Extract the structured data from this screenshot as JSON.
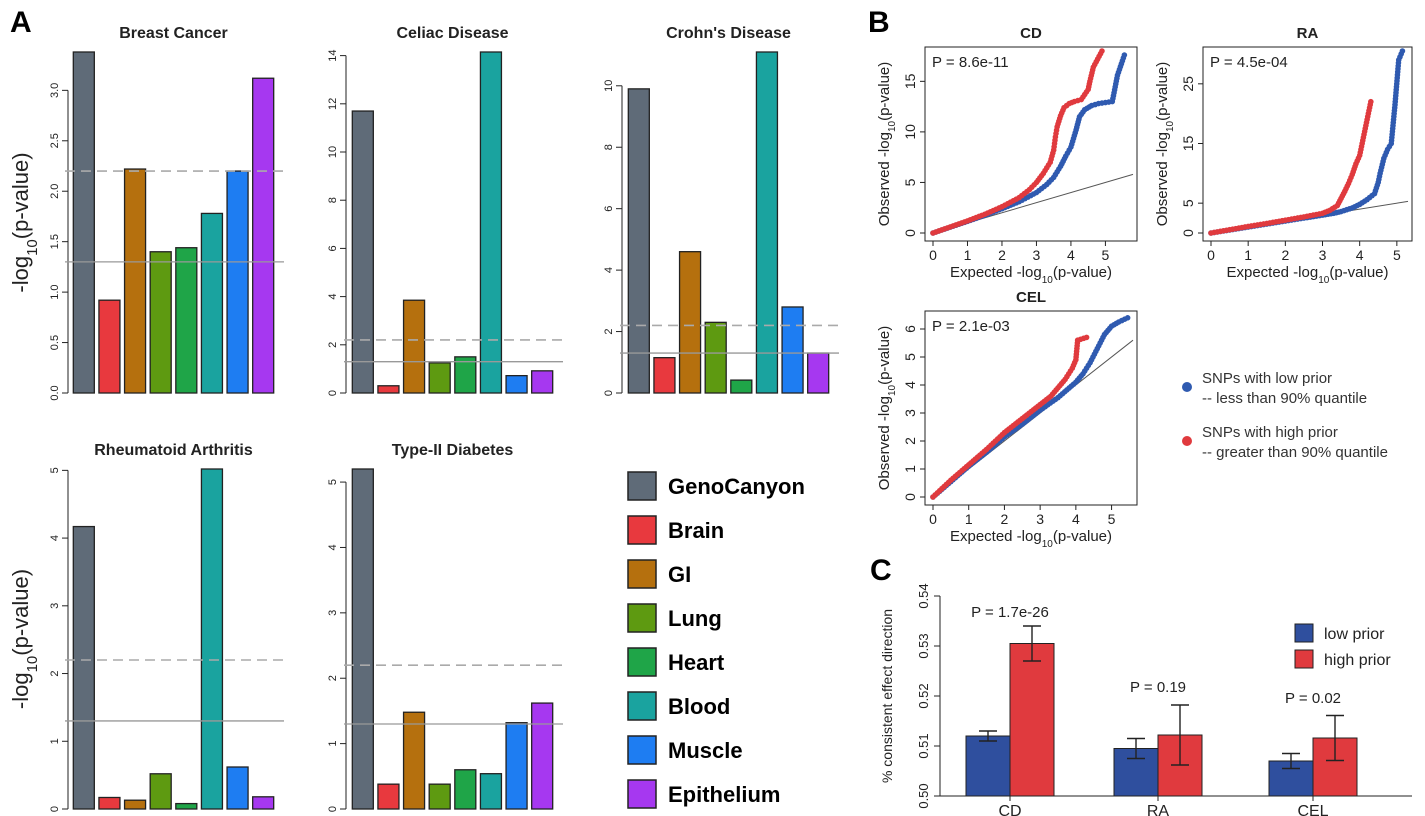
{
  "panel_labels": {
    "a": "A",
    "b": "B",
    "c": "C"
  },
  "categories_legend": {
    "items": [
      {
        "label": "GenoCanyon",
        "color": "#5f6b78"
      },
      {
        "label": "Brain",
        "color": "#e8393e"
      },
      {
        "label": "GI",
        "color": "#b5700e"
      },
      {
        "label": "Lung",
        "color": "#5e9a11"
      },
      {
        "label": "Heart",
        "color": "#1fa548"
      },
      {
        "label": "Blood",
        "color": "#1aa39f"
      },
      {
        "label": "Muscle",
        "color": "#1e7df2"
      },
      {
        "label": "Epithelium",
        "color": "#a638f0"
      }
    ]
  },
  "qq_legend": {
    "items": [
      {
        "line1": "SNPs with low prior",
        "line2": "-- less than 90% quantile",
        "color": "#2f5ab0"
      },
      {
        "line1": "SNPs with high prior",
        "line2": "-- greater than 90% quantile",
        "color": "#e03a3e"
      }
    ]
  },
  "chart_data": [
    {
      "type": "bar",
      "title": "Breast Cancer",
      "ylabel": "-log10(p-value)",
      "categories": [
        "GenoCanyon",
        "Brain",
        "GI",
        "Lung",
        "Heart",
        "Blood",
        "Muscle",
        "Epithelium"
      ],
      "values": [
        3.38,
        0.92,
        2.22,
        1.4,
        1.44,
        1.78,
        2.2,
        3.12
      ],
      "ylim": [
        0,
        3.38
      ],
      "yticks": [
        "0.0",
        "0.5",
        "1.0",
        "1.5",
        "2.0",
        "2.5",
        "3.0"
      ],
      "dashed_line": 2.2,
      "solid_line": 1.3
    },
    {
      "type": "bar",
      "title": "Celiac Disease",
      "ylabel": "",
      "categories": [
        "GenoCanyon",
        "Brain",
        "GI",
        "Lung",
        "Heart",
        "Blood",
        "Muscle",
        "Epithelium"
      ],
      "values": [
        11.7,
        0.3,
        3.85,
        1.25,
        1.5,
        14.15,
        0.72,
        0.92
      ],
      "ylim": [
        0,
        14.15
      ],
      "yticks": [
        "0",
        "2",
        "4",
        "6",
        "8",
        "10",
        "12",
        "14"
      ],
      "dashed_line": 2.2,
      "solid_line": 1.3
    },
    {
      "type": "bar",
      "title": "Crohn's Disease",
      "ylabel": "",
      "categories": [
        "GenoCanyon",
        "Brain",
        "GI",
        "Lung",
        "Heart",
        "Blood",
        "Muscle",
        "Epithelium"
      ],
      "values": [
        9.9,
        1.15,
        4.6,
        2.3,
        0.42,
        11.1,
        2.8,
        1.3
      ],
      "ylim": [
        0,
        11.1
      ],
      "yticks": [
        "0",
        "2",
        "4",
        "6",
        "8",
        "10"
      ],
      "dashed_line": 2.2,
      "solid_line": 1.3
    },
    {
      "type": "bar",
      "title": "Rheumatoid Arthritis",
      "ylabel": "-log10(p-value)",
      "categories": [
        "GenoCanyon",
        "Brain",
        "GI",
        "Lung",
        "Heart",
        "Blood",
        "Muscle",
        "Epithelium"
      ],
      "values": [
        4.17,
        0.17,
        0.13,
        0.52,
        0.08,
        5.02,
        0.62,
        0.18
      ],
      "ylim": [
        0,
        5.02
      ],
      "yticks": [
        "0",
        "1",
        "2",
        "3",
        "4",
        "5"
      ],
      "dashed_line": 2.2,
      "solid_line": 1.3
    },
    {
      "type": "bar",
      "title": "Type-II Diabetes",
      "ylabel": "",
      "categories": [
        "GenoCanyon",
        "Brain",
        "GI",
        "Lung",
        "Heart",
        "Blood",
        "Muscle",
        "Epithelium"
      ],
      "values": [
        5.2,
        0.38,
        1.48,
        0.38,
        0.6,
        0.54,
        1.32,
        1.62
      ],
      "ylim": [
        0,
        5.2
      ],
      "yticks": [
        "0",
        "1",
        "2",
        "3",
        "4",
        "5"
      ],
      "dashed_line": 2.2,
      "solid_line": 1.3
    },
    {
      "type": "scatter",
      "title": "CD",
      "annotation": "P = 8.6e-11",
      "xlabel": "Expected -log10(p-value)",
      "ylabel": "Observed -log10(p-value)",
      "xlim": [
        0,
        5.8
      ],
      "ylim": [
        0,
        18
      ],
      "xticks": [
        "0",
        "1",
        "2",
        "3",
        "4",
        "5"
      ],
      "yticks": [
        "0",
        "5",
        "10",
        "15"
      ],
      "reference_line": {
        "x": [
          0,
          5.8
        ],
        "y": [
          0,
          5.8
        ]
      },
      "series": [
        {
          "name": "SNPs with low prior",
          "values": [
            [
              0,
              0
            ],
            [
              0.5,
              0.58
            ],
            [
              1,
              1.15
            ],
            [
              1.5,
              1.75
            ],
            [
              2,
              2.4
            ],
            [
              2.5,
              3.1
            ],
            [
              3,
              4.0
            ],
            [
              3.3,
              4.8
            ],
            [
              3.5,
              5.5
            ],
            [
              3.7,
              6.6
            ],
            [
              3.85,
              7.6
            ],
            [
              4.0,
              8.5
            ],
            [
              4.15,
              10.2
            ],
            [
              4.25,
              11.5
            ],
            [
              4.4,
              12.2
            ],
            [
              4.6,
              12.6
            ],
            [
              4.8,
              12.8
            ],
            [
              5.0,
              12.9
            ],
            [
              5.2,
              13.0
            ],
            [
              5.35,
              15.6
            ],
            [
              5.55,
              17.6
            ]
          ]
        },
        {
          "name": "SNPs with high prior",
          "values": [
            [
              0,
              0
            ],
            [
              0.5,
              0.6
            ],
            [
              1,
              1.2
            ],
            [
              1.5,
              1.85
            ],
            [
              2,
              2.6
            ],
            [
              2.5,
              3.5
            ],
            [
              2.8,
              4.3
            ],
            [
              3.0,
              5.0
            ],
            [
              3.2,
              5.9
            ],
            [
              3.4,
              7.0
            ],
            [
              3.5,
              8.2
            ],
            [
              3.55,
              9.5
            ],
            [
              3.6,
              10.5
            ],
            [
              3.7,
              11.6
            ],
            [
              3.8,
              12.4
            ],
            [
              3.95,
              12.8
            ],
            [
              4.1,
              13.0
            ],
            [
              4.3,
              13.2
            ],
            [
              4.5,
              14.2
            ],
            [
              4.55,
              15.0
            ],
            [
              4.65,
              16.4
            ],
            [
              4.9,
              18.0
            ]
          ]
        }
      ]
    },
    {
      "type": "scatter",
      "title": "RA",
      "annotation": "P = 4.5e-04",
      "xlabel": "Expected -log10(p-value)",
      "ylabel": "Observed -log10(p-value)",
      "xlim": [
        0,
        5.3
      ],
      "ylim": [
        0,
        30.5
      ],
      "xticks": [
        "0",
        "1",
        "2",
        "3",
        "4",
        "5"
      ],
      "yticks": [
        "0",
        "5",
        "15",
        "25"
      ],
      "reference_line": {
        "x": [
          0,
          5.3
        ],
        "y": [
          0,
          5.3
        ]
      },
      "series": [
        {
          "name": "SNPs with low prior",
          "values": [
            [
              0,
              0
            ],
            [
              0.5,
              0.5
            ],
            [
              1,
              1.0
            ],
            [
              1.5,
              1.5
            ],
            [
              2,
              2.0
            ],
            [
              2.5,
              2.5
            ],
            [
              3,
              3.0
            ],
            [
              3.3,
              3.3
            ],
            [
              3.5,
              3.6
            ],
            [
              3.8,
              4.2
            ],
            [
              4.0,
              4.8
            ],
            [
              4.2,
              5.6
            ],
            [
              4.4,
              6.6
            ],
            [
              4.5,
              8.5
            ],
            [
              4.55,
              10.0
            ],
            [
              4.65,
              12.5
            ],
            [
              4.75,
              14.0
            ],
            [
              4.85,
              15.0
            ],
            [
              4.95,
              21.5
            ],
            [
              5.05,
              29.0
            ],
            [
              5.15,
              30.5
            ]
          ]
        },
        {
          "name": "SNPs with high prior",
          "values": [
            [
              0,
              0
            ],
            [
              0.5,
              0.55
            ],
            [
              1,
              1.1
            ],
            [
              1.5,
              1.6
            ],
            [
              2,
              2.15
            ],
            [
              2.5,
              2.7
            ],
            [
              3,
              3.3
            ],
            [
              3.2,
              3.8
            ],
            [
              3.4,
              4.6
            ],
            [
              3.5,
              5.8
            ],
            [
              3.6,
              7.0
            ],
            [
              3.7,
              8.3
            ],
            [
              3.8,
              9.8
            ],
            [
              3.9,
              11.6
            ],
            [
              4.0,
              13.0
            ],
            [
              4.3,
              22.0
            ]
          ]
        }
      ]
    },
    {
      "type": "scatter",
      "title": "CEL",
      "annotation": "P = 2.1e-03",
      "xlabel": "Expected -log10(p-value)",
      "ylabel": "Observed -log10(p-value)",
      "xlim": [
        0,
        5.6
      ],
      "ylim": [
        0,
        6.5
      ],
      "xticks": [
        "0",
        "1",
        "2",
        "3",
        "4",
        "5"
      ],
      "yticks": [
        "0",
        "1",
        "2",
        "3",
        "4",
        "5",
        "6"
      ],
      "reference_line": {
        "x": [
          0,
          5.6
        ],
        "y": [
          0,
          5.6
        ]
      },
      "series": [
        {
          "name": "SNPs with low prior",
          "values": [
            [
              0,
              0
            ],
            [
              0.5,
              0.55
            ],
            [
              1,
              1.1
            ],
            [
              1.5,
              1.6
            ],
            [
              2,
              2.15
            ],
            [
              2.5,
              2.6
            ],
            [
              3,
              3.1
            ],
            [
              3.5,
              3.55
            ],
            [
              4.0,
              4.1
            ],
            [
              4.2,
              4.4
            ],
            [
              4.4,
              4.8
            ],
            [
              4.6,
              5.3
            ],
            [
              4.8,
              5.8
            ],
            [
              5.0,
              6.1
            ],
            [
              5.2,
              6.25
            ],
            [
              5.45,
              6.4
            ]
          ]
        },
        {
          "name": "SNPs with high prior",
          "values": [
            [
              0,
              0
            ],
            [
              0.5,
              0.6
            ],
            [
              1,
              1.15
            ],
            [
              1.5,
              1.7
            ],
            [
              2,
              2.3
            ],
            [
              2.5,
              2.8
            ],
            [
              3,
              3.3
            ],
            [
              3.3,
              3.6
            ],
            [
              3.5,
              3.9
            ],
            [
              3.7,
              4.2
            ],
            [
              3.9,
              4.6
            ],
            [
              4.0,
              4.9
            ],
            [
              4.05,
              5.6
            ],
            [
              4.3,
              5.7
            ]
          ]
        }
      ]
    },
    {
      "type": "bar",
      "title": "",
      "annotations": [
        "P = 1.7e-26",
        "P = 0.19",
        "P = 0.02"
      ],
      "ylabel": "% consistent effect direction",
      "categories": [
        "CD",
        "RA",
        "CEL"
      ],
      "ylim": [
        0.5,
        0.54
      ],
      "yticks": [
        "0.50",
        "0.51",
        "0.52",
        "0.53",
        "0.54"
      ],
      "series": [
        {
          "name": "low prior",
          "color": "#2f4f9e",
          "values": [
            0.512,
            0.5095,
            0.507
          ],
          "errors": [
            0.001,
            0.002,
            0.0015
          ]
        },
        {
          "name": "high prior",
          "color": "#e03a3e",
          "values": [
            0.5305,
            0.5122,
            0.5116
          ],
          "errors": [
            0.0035,
            0.006,
            0.0045
          ]
        }
      ]
    }
  ]
}
